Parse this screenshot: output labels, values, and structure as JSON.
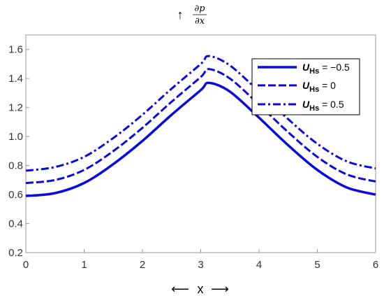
{
  "chart_data": {
    "type": "line",
    "ylabel": {
      "numerator": "∂p",
      "denominator": "∂x",
      "arrow": "↑"
    },
    "xlabel": {
      "text": "x",
      "arrow_left": "⟵",
      "arrow_right": "⟶"
    },
    "xlim": [
      0,
      6
    ],
    "ylim": [
      0.2,
      1.7
    ],
    "xticks": [
      "0",
      "1",
      "2",
      "3",
      "4",
      "5",
      "6"
    ],
    "yticks": [
      "0.2",
      "0.4",
      "0.6",
      "0.8",
      "1.0",
      "1.2",
      "1.4",
      "1.6"
    ],
    "legend_position": "top-right",
    "line_color": "#0a0adc",
    "x": [
      0,
      0.5,
      1,
      1.5,
      2,
      2.5,
      3,
      3.14,
      3.5,
      4,
      4.5,
      5,
      5.5,
      6
    ],
    "series": [
      {
        "name_symbol": "U",
        "name_subscript": "Hs",
        "name_value": " = −0.5",
        "style": "solid",
        "values": [
          0.59,
          0.61,
          0.68,
          0.81,
          0.97,
          1.15,
          1.32,
          1.37,
          1.31,
          1.13,
          0.94,
          0.77,
          0.65,
          0.6
        ]
      },
      {
        "name_symbol": "U",
        "name_subscript": "Hs",
        "name_value": " = 0",
        "style": "dashed",
        "values": [
          0.68,
          0.7,
          0.77,
          0.9,
          1.06,
          1.24,
          1.41,
          1.465,
          1.4,
          1.22,
          1.03,
          0.86,
          0.74,
          0.69
        ]
      },
      {
        "name_symbol": "U",
        "name_subscript": "Hs",
        "name_value": " = 0.5",
        "style": "dashdot",
        "values": [
          0.765,
          0.79,
          0.86,
          0.99,
          1.15,
          1.33,
          1.5,
          1.555,
          1.49,
          1.31,
          1.12,
          0.95,
          0.83,
          0.78
        ]
      }
    ]
  }
}
